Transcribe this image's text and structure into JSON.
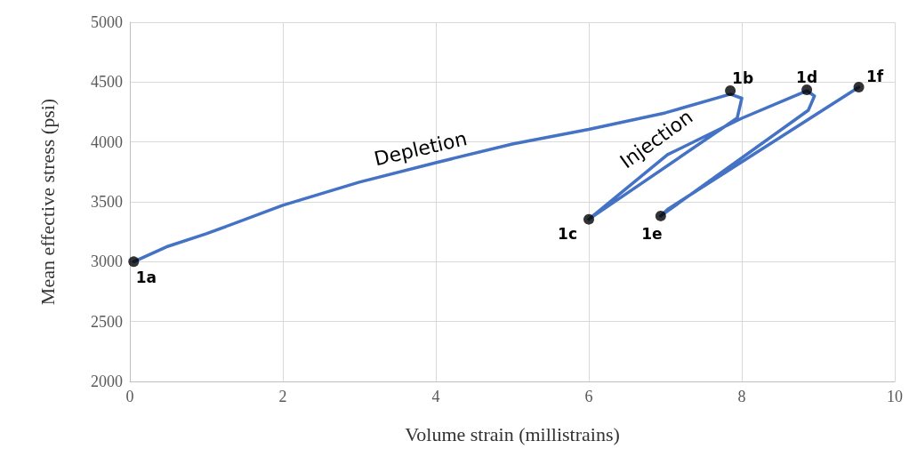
{
  "chart_data": {
    "type": "line",
    "xlabel": "Volume strain (millistrains)",
    "ylabel": "Mean effective stress (psi)",
    "xlim": [
      0,
      10
    ],
    "xticks": [
      0,
      2,
      4,
      6,
      8,
      10
    ],
    "ylim": [
      2000,
      5000
    ],
    "yticks": [
      2000,
      2500,
      3000,
      3500,
      4000,
      4500,
      5000
    ],
    "grid": true,
    "series": [
      {
        "color": "#4472c4",
        "marker": "none",
        "x": [
          0.05,
          0.5,
          1,
          2,
          3,
          4,
          5,
          6,
          7,
          7.85,
          8.0,
          7.94,
          6.0,
          7.03,
          8.0,
          8.85,
          8.95,
          8.87,
          6.94,
          7.03,
          9.53
        ],
        "values": [
          3000,
          3129,
          3233,
          3471,
          3664,
          3827,
          3983,
          4105,
          4243,
          4399,
          4365,
          4200,
          3354,
          3894,
          4198,
          4428,
          4384,
          4265,
          3382,
          3437,
          4458
        ]
      },
      {
        "type": "scatter",
        "color": "#000000",
        "marker": "circle",
        "x": [
          0.05,
          7.85,
          6.0,
          8.85,
          6.94,
          9.53
        ],
        "values": [
          3000,
          4428,
          3354,
          4436,
          3382,
          4458
        ]
      }
    ],
    "annotations": [
      {
        "text": "1a",
        "x": 0.05,
        "y": 3000
      },
      {
        "text": "1b",
        "x": 7.85,
        "y": 4428
      },
      {
        "text": "1c",
        "x": 6.0,
        "y": 3354
      },
      {
        "text": "1d",
        "x": 8.85,
        "y": 4436
      },
      {
        "text": "1e",
        "x": 6.94,
        "y": 3382
      },
      {
        "text": "1f",
        "x": 9.53,
        "y": 4458
      },
      {
        "text": "Depletion",
        "x": 3.8,
        "y": 3780
      },
      {
        "text": "Injection",
        "x": 7.0,
        "y": 3860
      }
    ]
  }
}
